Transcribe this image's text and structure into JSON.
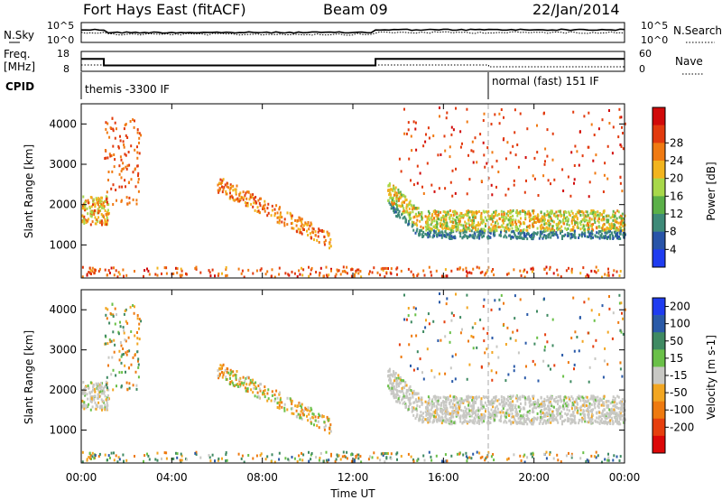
{
  "header": {
    "radar": "Fort Hays East (fitACF)",
    "beam": "Beam 09",
    "date": "22/Jan/2014"
  },
  "nsky_panel": {
    "left_label": "N.Sky",
    "right_label": "N.Search",
    "ytick_top": "10^5",
    "ytick_bottom": "10^0"
  },
  "freq_panel": {
    "left_label_1": "Freq.",
    "left_label_2": "[MHz]",
    "right_label": "Nave",
    "left_ticks": [
      "18",
      "8"
    ],
    "right_ticks": [
      "60",
      "0"
    ]
  },
  "cpid_panel": {
    "label": "CPID",
    "mode_1": "themis -3300 IF",
    "mode_2": "normal (fast) 151 IF"
  },
  "x_axis": {
    "title": "Time UT",
    "ticks": [
      "00:00",
      "04:00",
      "08:00",
      "12:00",
      "16:00",
      "20:00",
      "00:00"
    ]
  },
  "power_panel": {
    "ylabel": "Slant Range [km]",
    "cbar_title": "Power [dB]",
    "cbar_ticks": [
      "4",
      "8",
      "12",
      "16",
      "20",
      "24",
      "28"
    ],
    "cbar_colors": [
      "#1f3cf0",
      "#2854a8",
      "#3e8a78",
      "#5bb048",
      "#a8d84a",
      "#f2b41e",
      "#f07a12",
      "#e23a0e",
      "#d10a0a"
    ]
  },
  "velocity_panel": {
    "ylabel": "Slant Range [km]",
    "cbar_title": "Velocity [m s-1]",
    "cbar_ticks": [
      "200",
      "100",
      "50",
      "15",
      "-15",
      "-50",
      "-100",
      "-200"
    ],
    "cbar_colors": [
      "#1f3cf0",
      "#2a5aa8",
      "#3f8a62",
      "#6ac048",
      "#c8c8c4",
      "#f2a622",
      "#ee7a10",
      "#e63f0e",
      "#dc0808"
    ]
  },
  "chart_data": {
    "type": "heatmap",
    "x_range_hours": [
      0,
      24
    ],
    "y_range_km": [
      180,
      4500
    ],
    "yticks_km": [
      "1000",
      "2000",
      "3000",
      "4000"
    ],
    "series": [
      {
        "name": "Power [dB]",
        "panel": "top"
      },
      {
        "name": "Velocity [m s-1]",
        "panel": "bottom"
      }
    ],
    "freq_steps_mhz": [
      [
        0,
        14.5
      ],
      [
        1.0,
        10.5
      ],
      [
        13.0,
        14.5
      ]
    ],
    "cpid_change_hour": 18.0
  }
}
